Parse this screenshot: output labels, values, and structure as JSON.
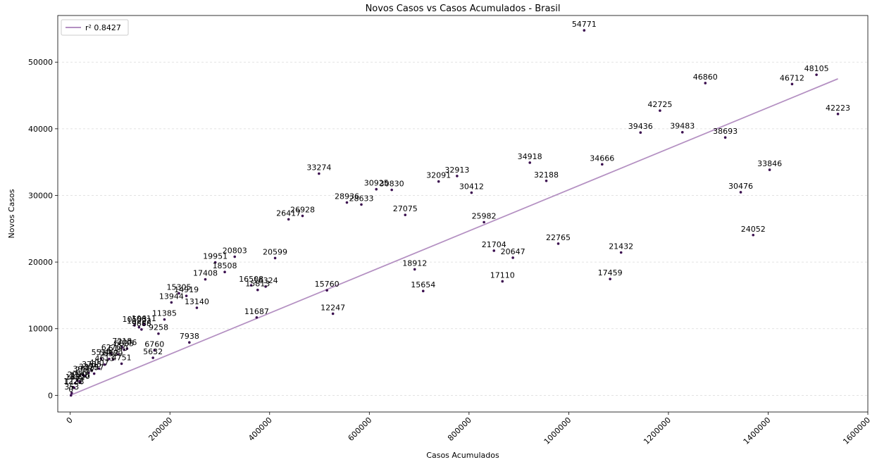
{
  "chart_data": {
    "type": "scatter",
    "title": "Novos Casos vs Casos Acumulados - Brasil",
    "xlabel": "Casos Acumulados",
    "ylabel": "Novos Casos",
    "xlim": [
      -25000,
      1600000
    ],
    "ylim": [
      -2500,
      57000
    ],
    "xticks": [
      0,
      200000,
      400000,
      600000,
      800000,
      1000000,
      1200000,
      1400000,
      1600000
    ],
    "yticks": [
      0,
      10000,
      20000,
      30000,
      40000,
      50000
    ],
    "grid": "y-dashed",
    "legend": {
      "position": "top-left",
      "label": "r² 0.8427"
    },
    "colors": {
      "points": "#3b0f4f",
      "fit_line": "#b490c2"
    },
    "fit_line": {
      "x": [
        0,
        1540000
      ],
      "y": [
        0,
        47500
      ]
    },
    "points": [
      {
        "x": 1031000,
        "y": 54771,
        "label": "54771"
      },
      {
        "x": 1497000,
        "y": 48105,
        "label": "48105"
      },
      {
        "x": 1274000,
        "y": 46860,
        "label": "46860"
      },
      {
        "x": 1448000,
        "y": 46712,
        "label": "46712"
      },
      {
        "x": 1183000,
        "y": 42725,
        "label": "42725"
      },
      {
        "x": 1540000,
        "y": 42223,
        "label": "42223"
      },
      {
        "x": 1144000,
        "y": 39436,
        "label": "39436"
      },
      {
        "x": 1228000,
        "y": 39483,
        "label": "39483"
      },
      {
        "x": 1314000,
        "y": 38693,
        "label": "38693"
      },
      {
        "x": 922000,
        "y": 34918,
        "label": "34918"
      },
      {
        "x": 1067000,
        "y": 34666,
        "label": "34666"
      },
      {
        "x": 1403000,
        "y": 33846,
        "label": "33846"
      },
      {
        "x": 499000,
        "y": 33274,
        "label": "33274"
      },
      {
        "x": 776000,
        "y": 32913,
        "label": "32913"
      },
      {
        "x": 955000,
        "y": 32188,
        "label": "32188"
      },
      {
        "x": 739000,
        "y": 32091,
        "label": "32091"
      },
      {
        "x": 614000,
        "y": 30925,
        "label": "30925"
      },
      {
        "x": 645000,
        "y": 30830,
        "label": "30830"
      },
      {
        "x": 805000,
        "y": 30412,
        "label": "30412"
      },
      {
        "x": 1345000,
        "y": 30476,
        "label": "30476"
      },
      {
        "x": 555000,
        "y": 28936,
        "label": "28936"
      },
      {
        "x": 584000,
        "y": 28633,
        "label": "28633"
      },
      {
        "x": 672000,
        "y": 27075,
        "label": "27075"
      },
      {
        "x": 466000,
        "y": 26928,
        "label": "26928"
      },
      {
        "x": 438000,
        "y": 26417,
        "label": "26417"
      },
      {
        "x": 830000,
        "y": 25982,
        "label": "25982"
      },
      {
        "x": 1370000,
        "y": 24052,
        "label": "24052"
      },
      {
        "x": 979000,
        "y": 22765,
        "label": "22765"
      },
      {
        "x": 850000,
        "y": 21704,
        "label": "21704"
      },
      {
        "x": 1105000,
        "y": 21432,
        "label": "21432"
      },
      {
        "x": 330000,
        "y": 20803,
        "label": "20803"
      },
      {
        "x": 888000,
        "y": 20647,
        "label": "20647"
      },
      {
        "x": 411000,
        "y": 20599,
        "label": "20599"
      },
      {
        "x": 291000,
        "y": 19951,
        "label": "19951"
      },
      {
        "x": 691000,
        "y": 18912,
        "label": "18912"
      },
      {
        "x": 310000,
        "y": 18508,
        "label": "18508"
      },
      {
        "x": 1083000,
        "y": 17459,
        "label": "17459"
      },
      {
        "x": 271000,
        "y": 17408,
        "label": "17408"
      },
      {
        "x": 867000,
        "y": 17110,
        "label": "17110"
      },
      {
        "x": 363000,
        "y": 16508,
        "label": "16508"
      },
      {
        "x": 392000,
        "y": 16324,
        "label": "16324"
      },
      {
        "x": 376000,
        "y": 15813,
        "label": "15813"
      },
      {
        "x": 515000,
        "y": 15760,
        "label": "15760"
      },
      {
        "x": 708000,
        "y": 15654,
        "label": "15654"
      },
      {
        "x": 218000,
        "y": 15305,
        "label": "15305"
      },
      {
        "x": 233000,
        "y": 14919,
        "label": "14919"
      },
      {
        "x": 203000,
        "y": 13944,
        "label": "13944"
      },
      {
        "x": 254000,
        "y": 13140,
        "label": "13140"
      },
      {
        "x": 527000,
        "y": 12247,
        "label": "12247"
      },
      {
        "x": 374000,
        "y": 11687,
        "label": "11687"
      },
      {
        "x": 189000,
        "y": 11385,
        "label": "11385"
      },
      {
        "x": 148000,
        "y": 10611,
        "label": "10611"
      },
      {
        "x": 129000,
        "y": 10503,
        "label": "10503"
      },
      {
        "x": 138000,
        "y": 10222,
        "label": "10222"
      },
      {
        "x": 143000,
        "y": 9888,
        "label": "9888"
      },
      {
        "x": 177000,
        "y": 9258,
        "label": "9258"
      },
      {
        "x": 239000,
        "y": 7938,
        "label": "7938"
      },
      {
        "x": 104000,
        "y": 7218,
        "label": "7218"
      },
      {
        "x": 108000,
        "y": 6835,
        "label": "6835"
      },
      {
        "x": 114000,
        "y": 7006,
        "label": "7006"
      },
      {
        "x": 169000,
        "y": 6760,
        "label": "6760"
      },
      {
        "x": 82000,
        "y": 6276,
        "label": "6276"
      },
      {
        "x": 96000,
        "y": 6140,
        "label": "6140"
      },
      {
        "x": 62000,
        "y": 5514,
        "label": "5514"
      },
      {
        "x": 78000,
        "y": 5462,
        "label": "5462"
      },
      {
        "x": 86000,
        "y": 5389,
        "label": "5389"
      },
      {
        "x": 166000,
        "y": 5632,
        "label": "5632"
      },
      {
        "x": 103000,
        "y": 4751,
        "label": "4751"
      },
      {
        "x": 69000,
        "y": 4613,
        "label": "4613"
      },
      {
        "x": 58000,
        "y": 4007,
        "label": "4007"
      },
      {
        "x": 43000,
        "y": 3735,
        "label": "3735"
      },
      {
        "x": 25000,
        "y": 3058,
        "label": "3058"
      },
      {
        "x": 37000,
        "y": 3379,
        "label": "3379"
      },
      {
        "x": 48000,
        "y": 3257,
        "label": "3257"
      },
      {
        "x": 30000,
        "y": 2917,
        "label": "2917"
      },
      {
        "x": 10000,
        "y": 1832,
        "label": "1832"
      },
      {
        "x": 14000,
        "y": 2210,
        "label": "2210"
      },
      {
        "x": 19000,
        "y": 2105,
        "label": "2105"
      },
      {
        "x": 20000,
        "y": 1930,
        "label": "1930"
      },
      {
        "x": 6000,
        "y": 1222,
        "label": "1222"
      },
      {
        "x": 8000,
        "y": 1138,
        "label": "1138"
      },
      {
        "x": 3000,
        "y": 353,
        "label": "353"
      },
      {
        "x": 1500,
        "y": 0,
        "label": "0"
      }
    ]
  }
}
